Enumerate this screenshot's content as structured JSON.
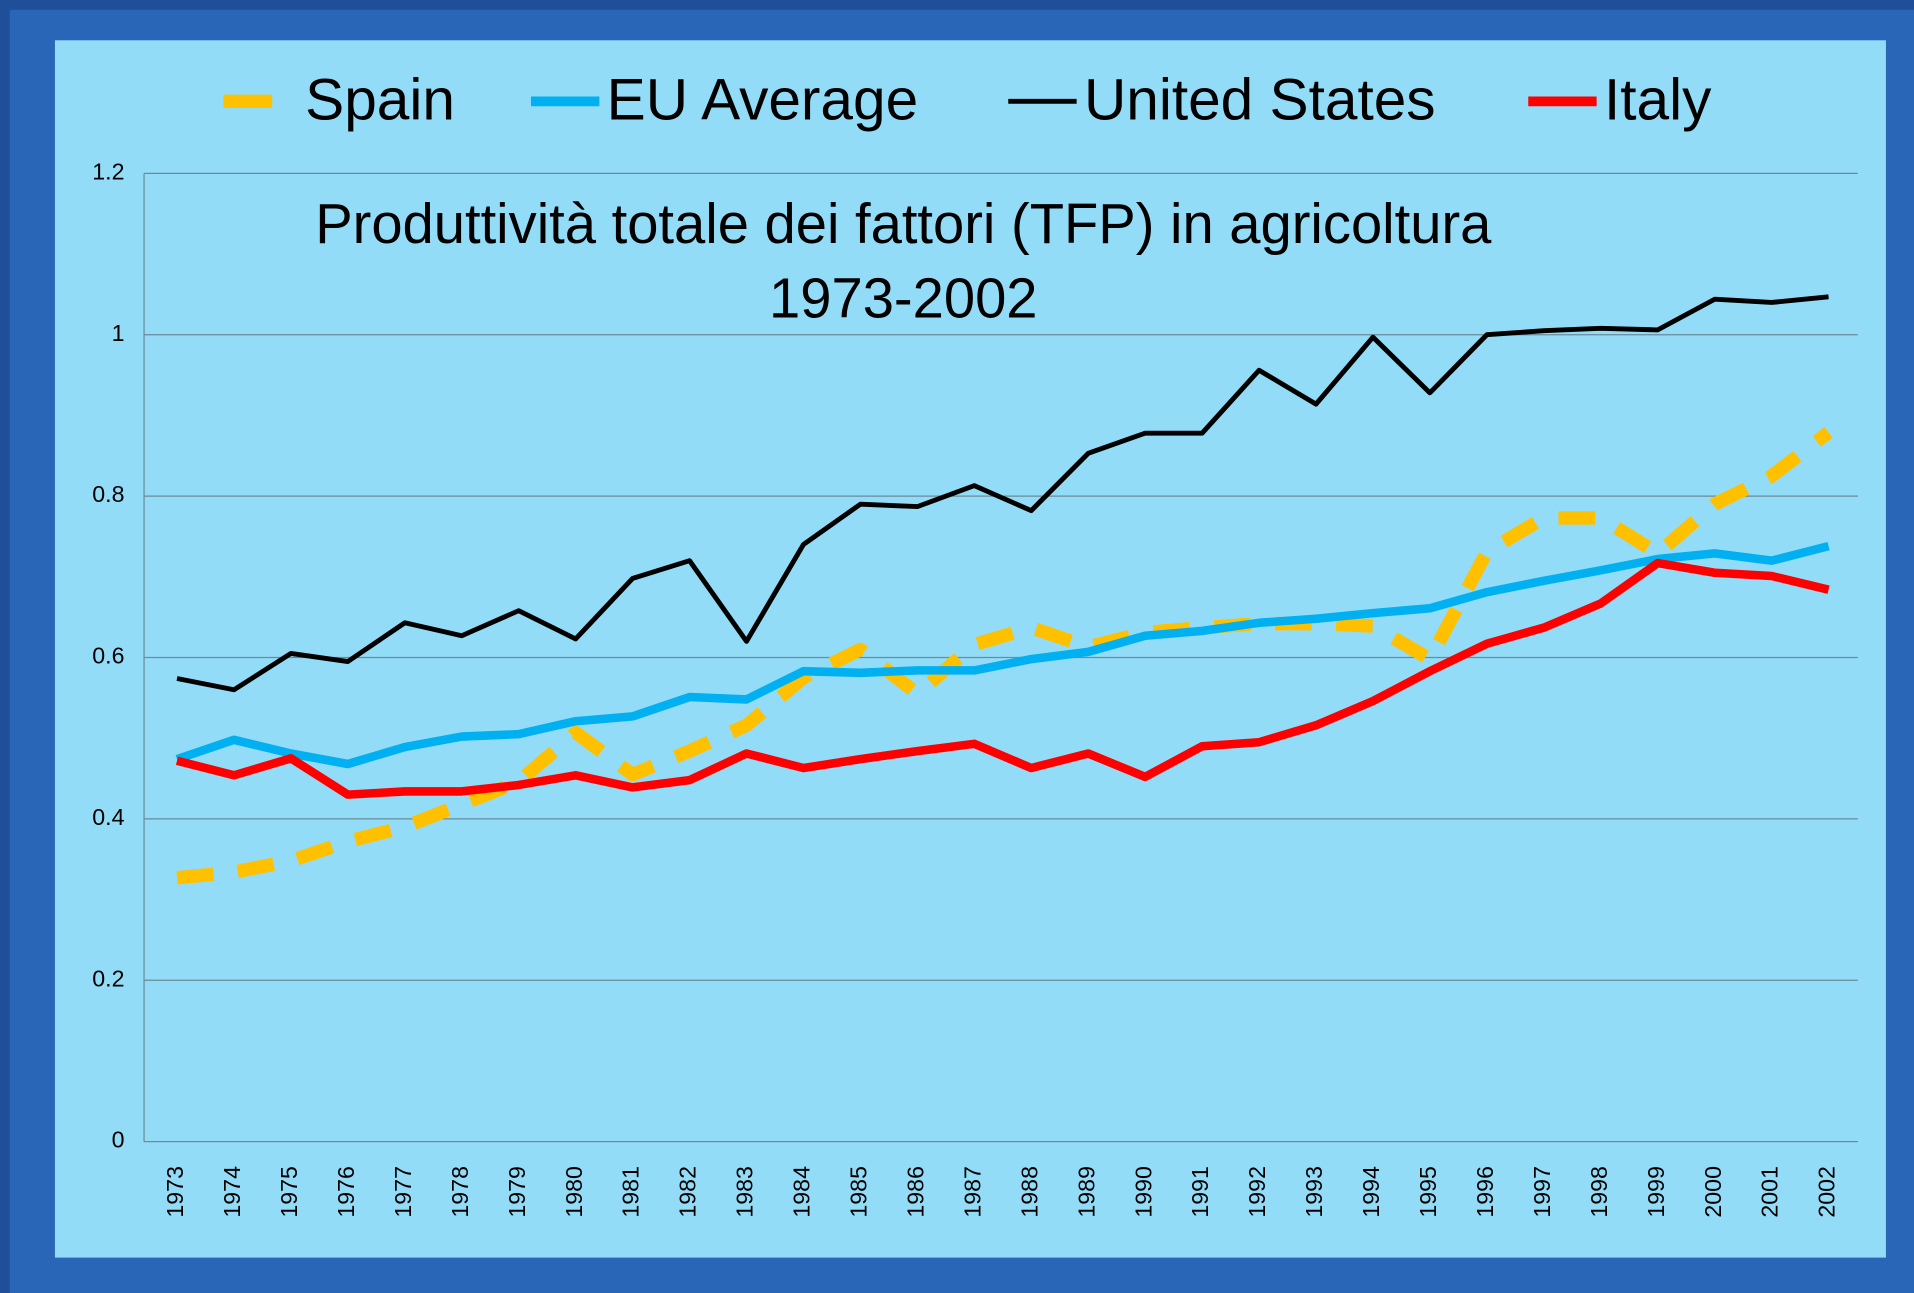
{
  "chart_data": {
    "type": "line",
    "title": [
      "Produttività totale dei fattori (TFP) in agricoltura",
      "1973-2002"
    ],
    "categories": [
      "1973",
      "1974",
      "1975",
      "1976",
      "1977",
      "1978",
      "1979",
      "1980",
      "1981",
      "1982",
      "1983",
      "1984",
      "1985",
      "1986",
      "1987",
      "1988",
      "1989",
      "1990",
      "1991",
      "1992",
      "1993",
      "1994",
      "1995",
      "1996",
      "1997",
      "1998",
      "1999",
      "2000",
      "2001",
      "2002"
    ],
    "series": [
      {
        "name": "Spain",
        "color": "#ffc000",
        "dashed": true,
        "values": [
          0.327,
          0.334,
          0.348,
          0.372,
          0.39,
          0.418,
          0.446,
          0.507,
          0.455,
          0.484,
          0.516,
          0.575,
          0.61,
          0.555,
          0.616,
          0.637,
          0.613,
          0.631,
          0.637,
          0.642,
          0.642,
          0.639,
          0.598,
          0.731,
          0.773,
          0.773,
          0.729,
          0.79,
          0.825,
          0.879
        ]
      },
      {
        "name": "EU Average",
        "color": "#00b0f0",
        "values": [
          0.474,
          0.498,
          0.481,
          0.468,
          0.489,
          0.502,
          0.505,
          0.521,
          0.527,
          0.551,
          0.548,
          0.583,
          0.581,
          0.584,
          0.584,
          0.598,
          0.607,
          0.627,
          0.633,
          0.643,
          0.648,
          0.655,
          0.661,
          0.681,
          0.695,
          0.708,
          0.722,
          0.729,
          0.72,
          0.738
        ]
      },
      {
        "name": "United States",
        "color": "#000000",
        "values": [
          0.574,
          0.56,
          0.605,
          0.595,
          0.643,
          0.627,
          0.658,
          0.623,
          0.698,
          0.72,
          0.62,
          0.74,
          0.79,
          0.787,
          0.813,
          0.782,
          0.853,
          0.878,
          0.878,
          0.956,
          0.914,
          0.997,
          0.928,
          1.0,
          1.005,
          1.008,
          1.006,
          1.044,
          1.04,
          1.047
        ]
      },
      {
        "name": "Italy",
        "color": "#ff0000",
        "values": [
          0.472,
          0.454,
          0.475,
          0.43,
          0.434,
          0.434,
          0.442,
          0.454,
          0.439,
          0.448,
          0.481,
          0.463,
          0.474,
          0.484,
          0.493,
          0.463,
          0.481,
          0.452,
          0.49,
          0.495,
          0.516,
          0.546,
          0.583,
          0.617,
          0.637,
          0.667,
          0.717,
          0.705,
          0.701,
          0.684
        ]
      }
    ],
    "ylim": [
      0,
      1.2
    ],
    "yticks": [
      0,
      0.2,
      0.4,
      0.6,
      0.8,
      1,
      1.2
    ],
    "grid": true,
    "legend": "top"
  }
}
